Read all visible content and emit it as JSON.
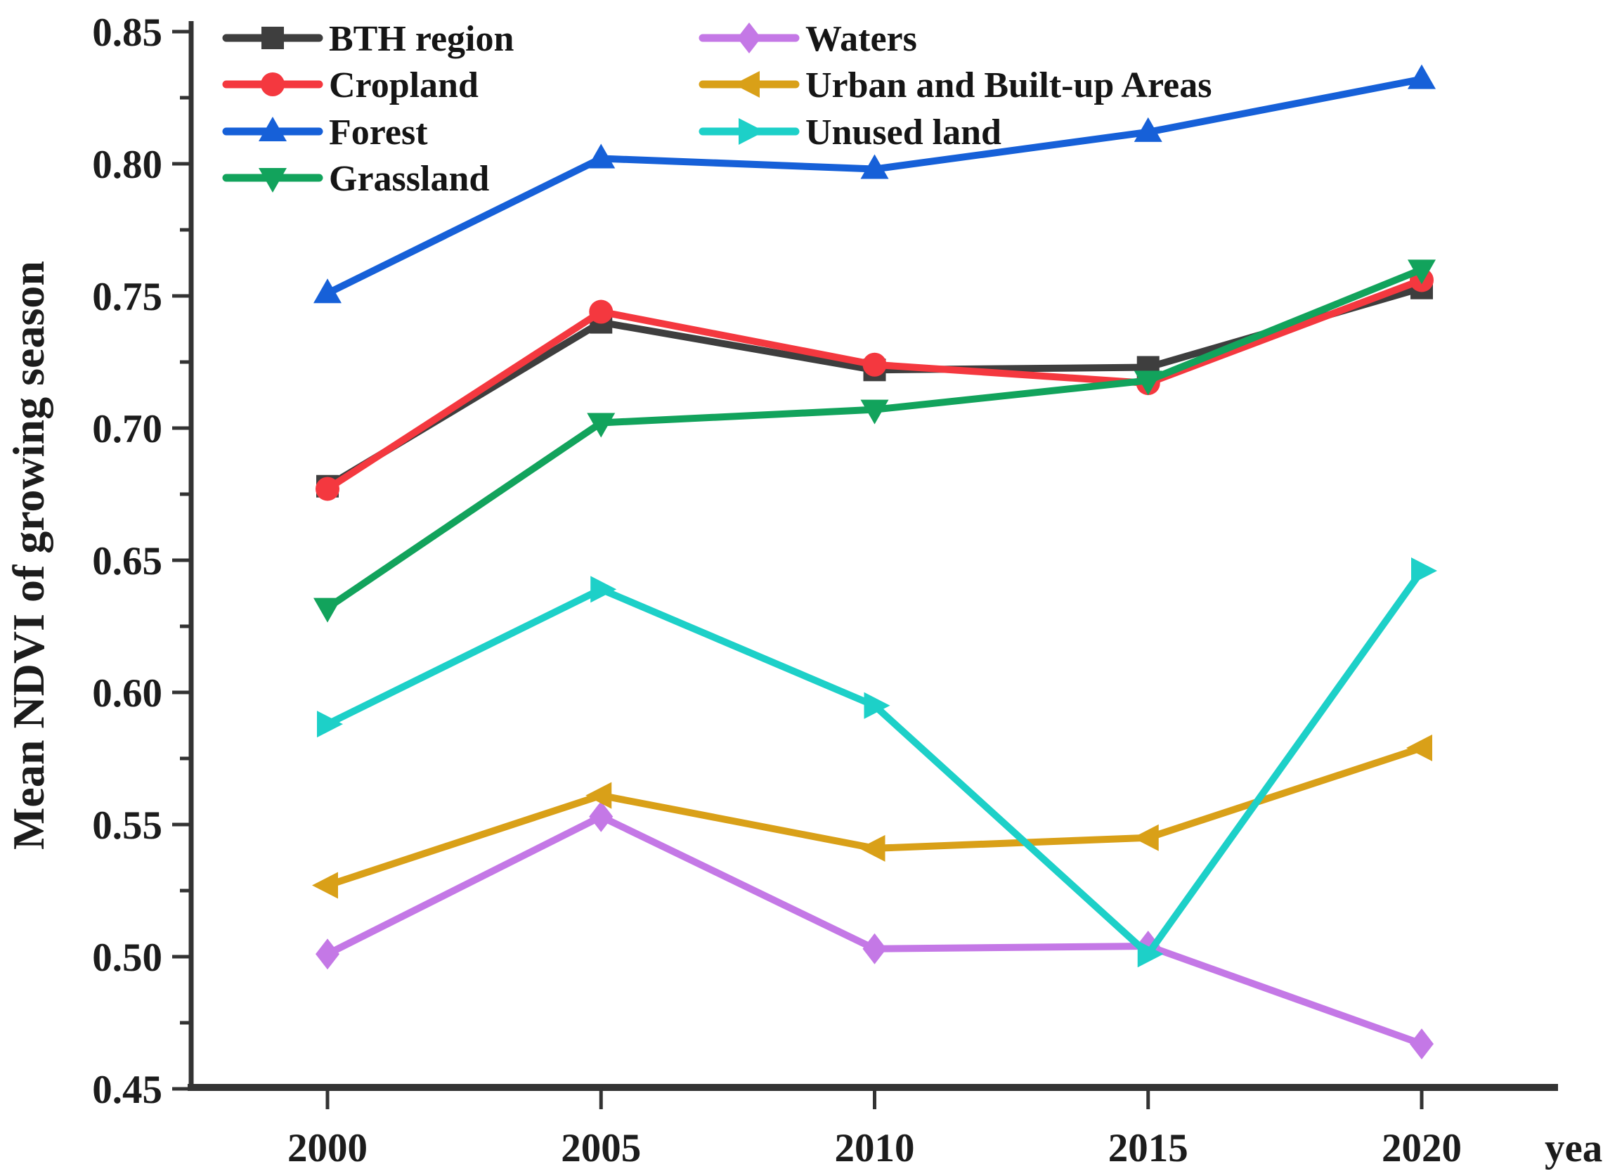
{
  "figure": {
    "background": "#ffffff",
    "axis_color": "#333333",
    "text_color": "#1c1c1c"
  },
  "chart_data": {
    "type": "line",
    "x": [
      2000,
      2005,
      2010,
      2015,
      2020
    ],
    "x_tick_labels": [
      "2000",
      "2005",
      "2010",
      "2015",
      "2020"
    ],
    "xlabel": "year",
    "ylabel": "Mean NDVI of growing season",
    "ylim": [
      0.45,
      0.85
    ],
    "y_major_step": 0.05,
    "y_minor_step": 0.025,
    "y_tick_labels": [
      "0.45",
      "0.50",
      "0.55",
      "0.60",
      "0.65",
      "0.70",
      "0.75",
      "0.80",
      "0.85"
    ],
    "grid": false,
    "legend_position": "top-left-inside",
    "series": [
      {
        "name": "BTH region",
        "color": "#3e3e3e",
        "marker": "square",
        "values": [
          0.678,
          0.74,
          0.722,
          0.723,
          0.753
        ]
      },
      {
        "name": "Cropland",
        "color": "#f4383f",
        "marker": "circle",
        "values": [
          0.677,
          0.744,
          0.724,
          0.717,
          0.756
        ]
      },
      {
        "name": "Forest",
        "color": "#1660d8",
        "marker": "triangle-up",
        "values": [
          0.751,
          0.802,
          0.798,
          0.812,
          0.832
        ]
      },
      {
        "name": "Grassland",
        "color": "#12a35c",
        "marker": "triangle-down",
        "values": [
          0.632,
          0.702,
          0.707,
          0.718,
          0.76
        ]
      },
      {
        "name": "Waters",
        "color": "#c478e6",
        "marker": "diamond",
        "values": [
          0.501,
          0.553,
          0.503,
          0.504,
          0.467
        ]
      },
      {
        "name": "Urban and Built-up Areas",
        "color": "#d9a018",
        "marker": "triangle-left",
        "values": [
          0.527,
          0.561,
          0.541,
          0.545,
          0.579
        ]
      },
      {
        "name": "Unused land",
        "color": "#1dd0c8",
        "marker": "triangle-right",
        "values": [
          0.588,
          0.639,
          0.595,
          0.501,
          0.646
        ]
      }
    ]
  },
  "legend": {
    "column1": [
      "BTH region",
      "Cropland",
      "Forest",
      "Grassland"
    ],
    "column2": [
      "Waters",
      "Urban and Built-up Areas",
      "Unused land"
    ]
  }
}
